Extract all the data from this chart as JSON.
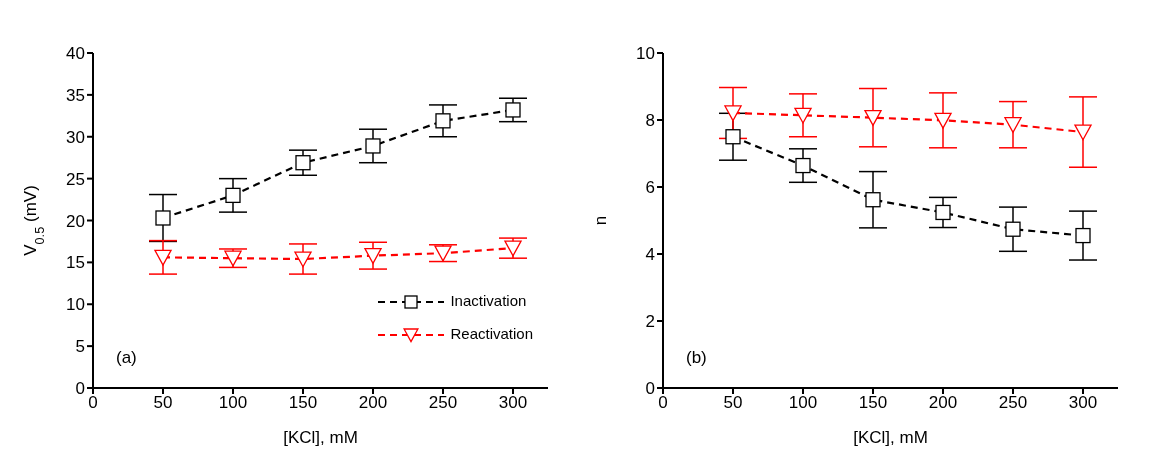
{
  "chart_data": [
    {
      "type": "line",
      "xlabel": "[KCl], mM",
      "ylabel": "V$_{0.5}$ (mV)",
      "annotations": [
        "(a)"
      ],
      "x": [
        50,
        100,
        150,
        200,
        250,
        300
      ],
      "series": [
        {
          "name": "Inactivation",
          "color": "#000000",
          "marker": "square",
          "values": [
            20.3,
            23.0,
            26.9,
            28.9,
            31.9,
            33.2
          ],
          "errors": [
            2.8,
            2.0,
            1.5,
            2.0,
            1.9,
            1.4
          ]
        },
        {
          "name": "Reactivation",
          "color": "#ff0000",
          "marker": "triangle",
          "values": [
            15.6,
            15.5,
            15.4,
            15.8,
            16.1,
            16.7
          ],
          "errors": [
            2.0,
            1.1,
            1.8,
            1.6,
            1.0,
            1.2
          ]
        }
      ],
      "xlim": [
        0,
        325
      ],
      "xticks": [
        0,
        50,
        100,
        150,
        200,
        250,
        300
      ],
      "ylim": [
        0,
        40
      ],
      "yticks": [
        0,
        5,
        10,
        15,
        20,
        25,
        30,
        35,
        40
      ],
      "grid": false,
      "legend": "bottom right",
      "line_style": "dashed"
    },
    {
      "type": "line",
      "xlabel": "[KCl], mM",
      "ylabel": "n",
      "annotations": [
        "(b)"
      ],
      "x": [
        50,
        100,
        150,
        200,
        250,
        300
      ],
      "series": [
        {
          "color": "#000000",
          "marker": "square",
          "values": [
            7.5,
            6.64,
            5.62,
            5.24,
            4.74,
            4.55
          ],
          "errors": [
            0.7,
            0.5,
            0.84,
            0.45,
            0.66,
            0.73
          ]
        },
        {
          "color": "#ff0000",
          "marker": "triangle",
          "values": [
            8.21,
            8.14,
            8.07,
            7.99,
            7.86,
            7.64
          ],
          "errors": [
            0.76,
            0.64,
            0.87,
            0.82,
            0.69,
            1.05
          ]
        }
      ],
      "xlim": [
        0,
        325
      ],
      "xticks": [
        0,
        50,
        100,
        150,
        200,
        250,
        300
      ],
      "ylim": [
        0,
        10
      ],
      "yticks": [
        0,
        2,
        4,
        6,
        8,
        10
      ],
      "grid": false,
      "legend": false,
      "line_style": "dashed"
    }
  ]
}
